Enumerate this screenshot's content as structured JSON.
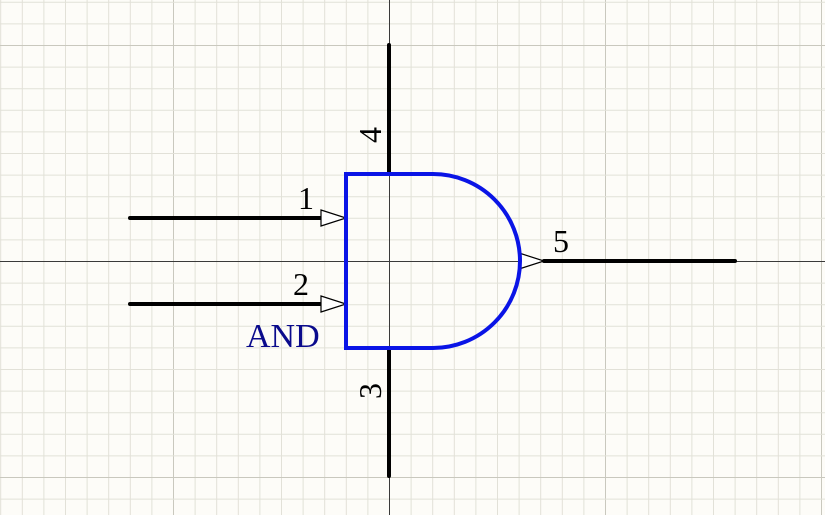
{
  "colors": {
    "background": "#fdfcf8",
    "grid_minor": "#e2e1d8",
    "grid_major": "#c9c8be",
    "axis": "#3a3a3a",
    "body": "#0a14e6",
    "pin": "#000000",
    "label": "#0a0a8c"
  },
  "gate": {
    "label": "AND",
    "pins": [
      {
        "number": "1",
        "role": "input"
      },
      {
        "number": "2",
        "role": "input"
      },
      {
        "number": "3",
        "role": "power"
      },
      {
        "number": "4",
        "role": "power"
      },
      {
        "number": "5",
        "role": "output"
      }
    ]
  }
}
